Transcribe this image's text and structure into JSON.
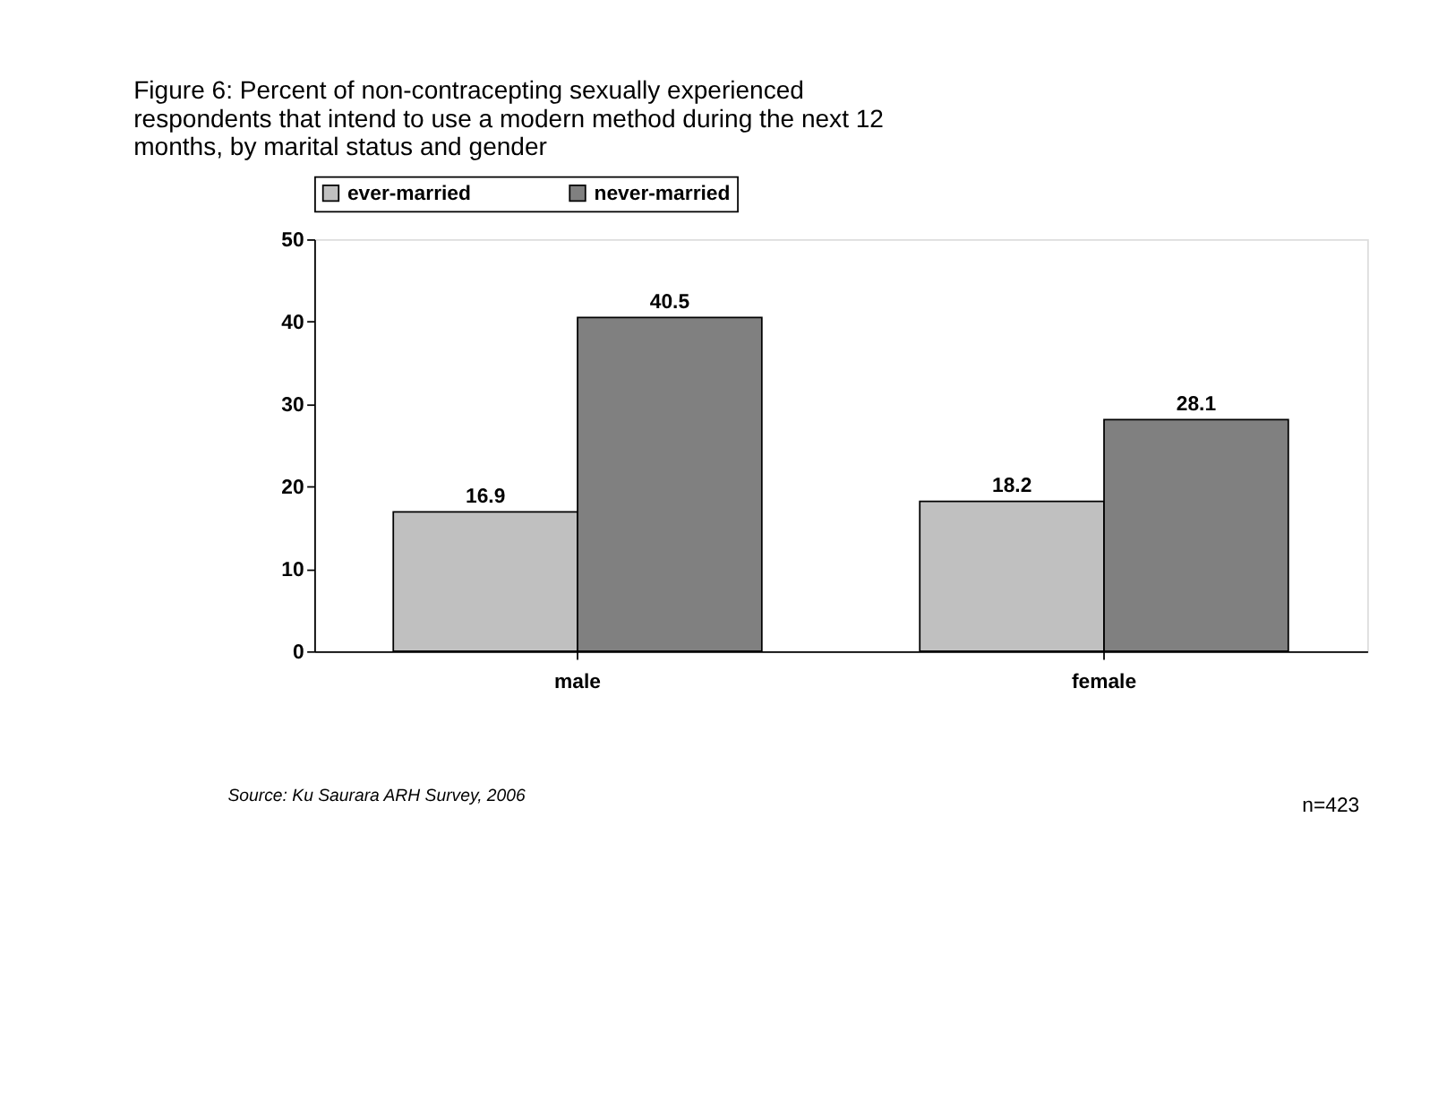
{
  "chart_data": {
    "type": "bar",
    "title": [
      "Figure 6: Percent of non-contracepting sexually experienced",
      "respondents that intend to use a modern method during the next 12",
      "months, by marital status and gender"
    ],
    "categories": [
      "male",
      "female"
    ],
    "series": [
      {
        "name": "ever-married",
        "color": "#c0c0c0",
        "values": [
          16.9,
          18.2
        ]
      },
      {
        "name": "never-married",
        "color": "#808080",
        "values": [
          40.5,
          28.1
        ]
      }
    ],
    "ylim": [
      0,
      50
    ],
    "yticks": [
      0,
      10,
      20,
      30,
      40,
      50
    ],
    "grid": false,
    "legend": "top",
    "data_labels": true,
    "annotations": [
      "Source: Ku Saurara ARH Survey, 2006",
      "n=423"
    ]
  }
}
